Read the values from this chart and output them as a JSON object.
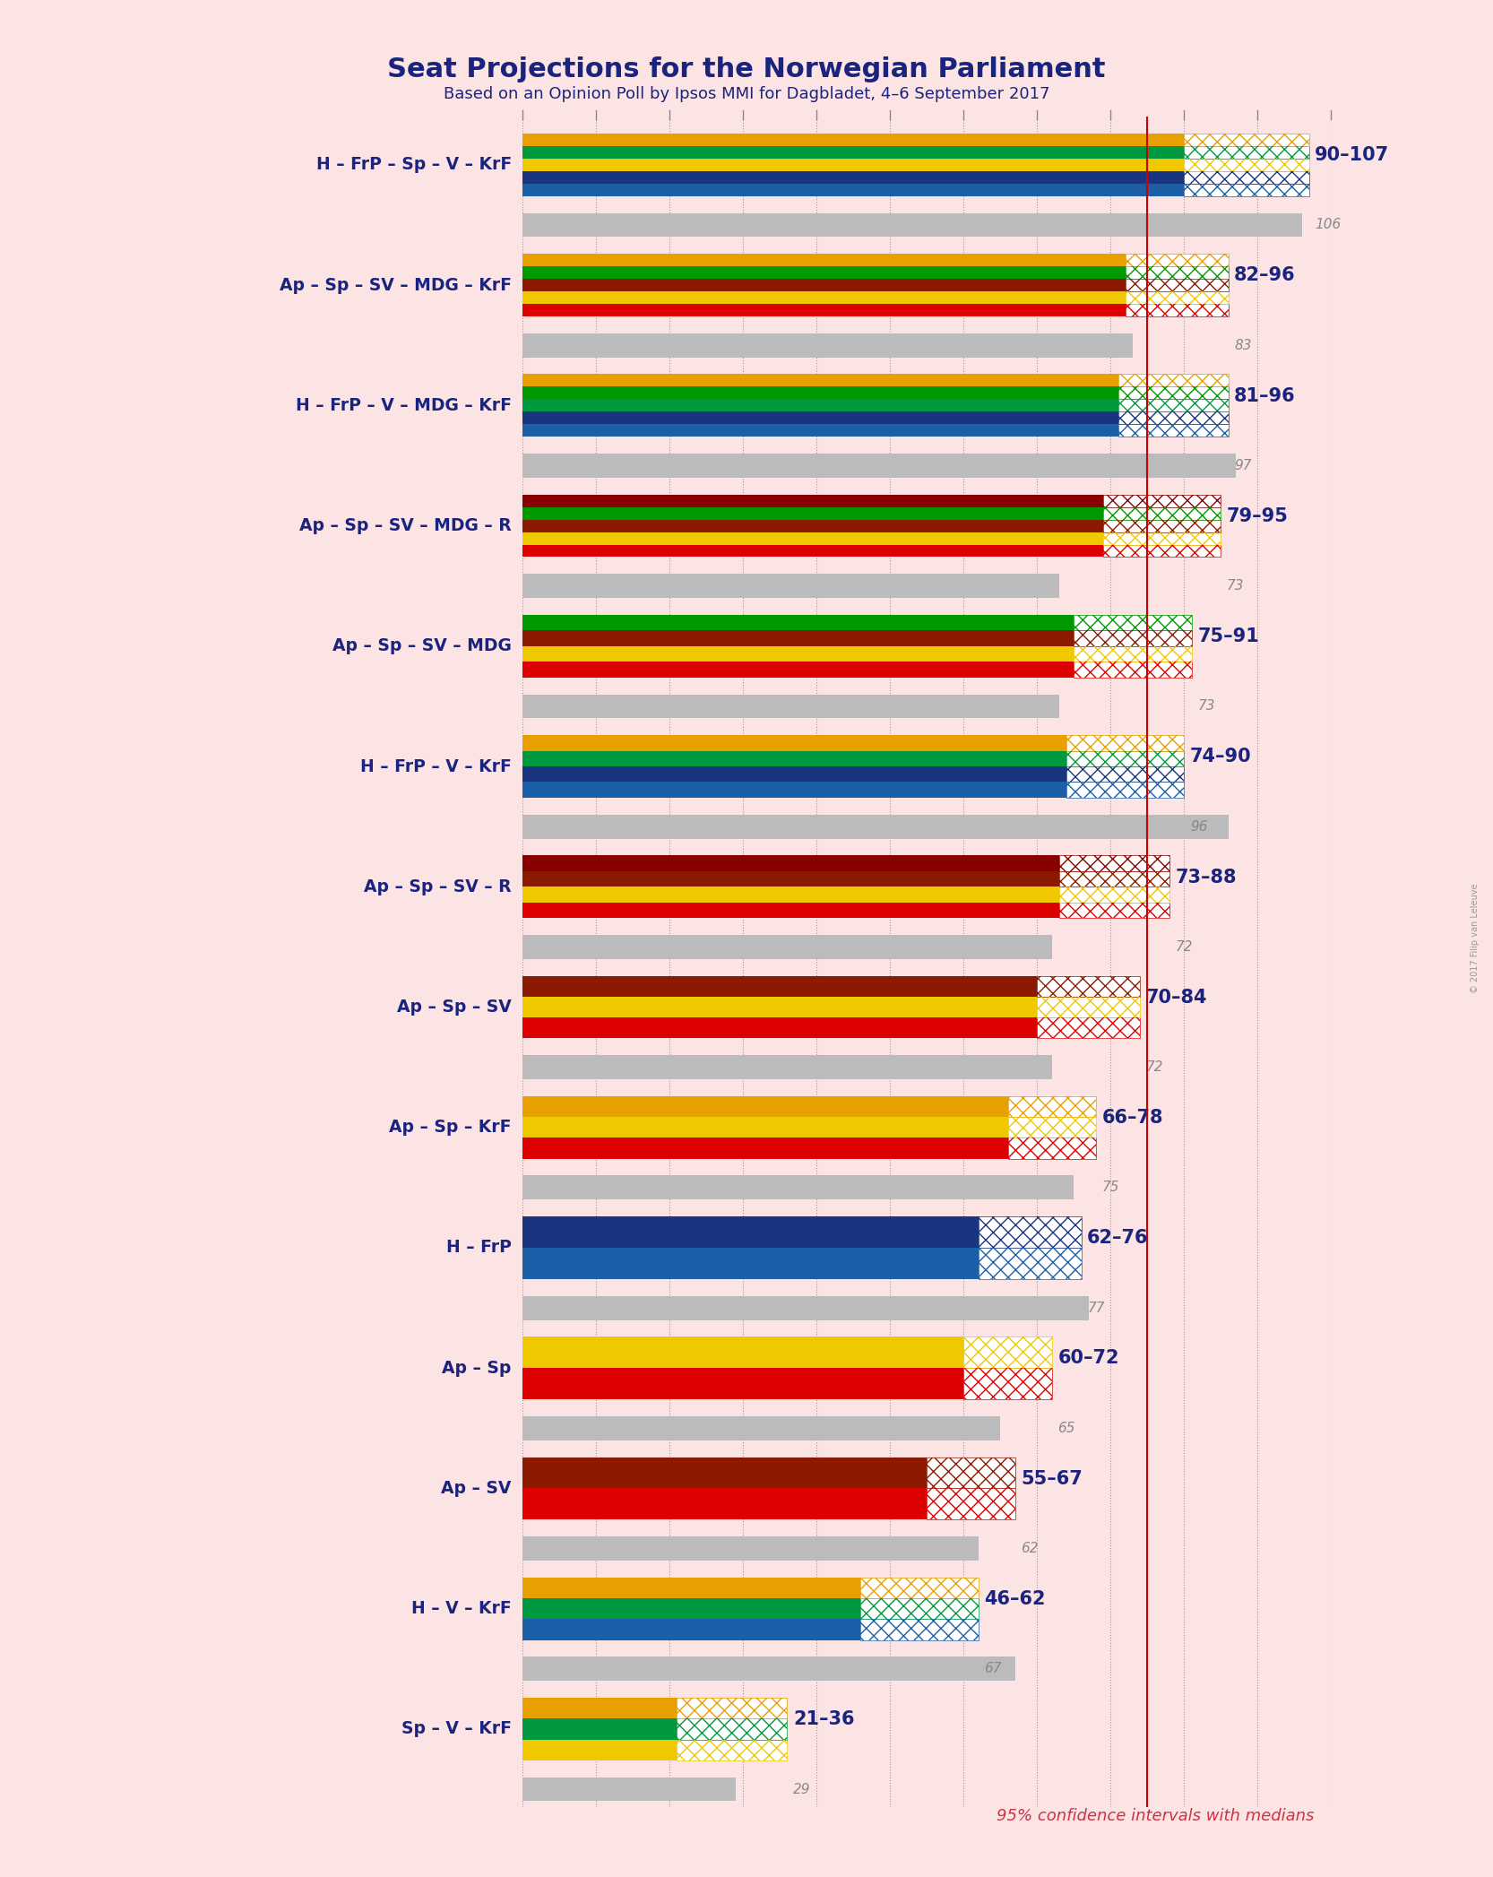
{
  "title": "Seat Projections for the Norwegian Parliament",
  "subtitle": "Based on an Opinion Poll by Ipsos MMI for Dagbladet, 4–6 September 2017",
  "note": "95% confidence intervals with medians",
  "background_color": "#fce4e4",
  "title_color": "#1a237e",
  "majority_line": 85,
  "x_max": 110,
  "coalitions": [
    {
      "name": "H – FrP – Sp – V – KrF",
      "ci_low": 90,
      "ci_high": 107,
      "median": 106,
      "parties": [
        "H",
        "FrP",
        "Sp",
        "V",
        "KrF"
      ]
    },
    {
      "name": "Ap – Sp – SV – MDG – KrF",
      "ci_low": 82,
      "ci_high": 96,
      "median": 83,
      "parties": [
        "Ap",
        "Sp",
        "SV",
        "MDG",
        "KrF"
      ]
    },
    {
      "name": "H – FrP – V – MDG – KrF",
      "ci_low": 81,
      "ci_high": 96,
      "median": 97,
      "parties": [
        "H",
        "FrP",
        "V",
        "MDG",
        "KrF"
      ]
    },
    {
      "name": "Ap – Sp – SV – MDG – R",
      "ci_low": 79,
      "ci_high": 95,
      "median": 73,
      "parties": [
        "Ap",
        "Sp",
        "SV",
        "MDG",
        "R"
      ]
    },
    {
      "name": "Ap – Sp – SV – MDG",
      "ci_low": 75,
      "ci_high": 91,
      "median": 73,
      "parties": [
        "Ap",
        "Sp",
        "SV",
        "MDG"
      ]
    },
    {
      "name": "H – FrP – V – KrF",
      "ci_low": 74,
      "ci_high": 90,
      "median": 96,
      "parties": [
        "H",
        "FrP",
        "V",
        "KrF"
      ]
    },
    {
      "name": "Ap – Sp – SV – R",
      "ci_low": 73,
      "ci_high": 88,
      "median": 72,
      "parties": [
        "Ap",
        "Sp",
        "SV",
        "R"
      ]
    },
    {
      "name": "Ap – Sp – SV",
      "ci_low": 70,
      "ci_high": 84,
      "median": 72,
      "parties": [
        "Ap",
        "Sp",
        "SV"
      ]
    },
    {
      "name": "Ap – Sp – KrF",
      "ci_low": 66,
      "ci_high": 78,
      "median": 75,
      "parties": [
        "Ap",
        "Sp",
        "KrF"
      ]
    },
    {
      "name": "H – FrP",
      "ci_low": 62,
      "ci_high": 76,
      "median": 77,
      "parties": [
        "H",
        "FrP"
      ]
    },
    {
      "name": "Ap – Sp",
      "ci_low": 60,
      "ci_high": 72,
      "median": 65,
      "parties": [
        "Ap",
        "Sp"
      ]
    },
    {
      "name": "Ap – SV",
      "ci_low": 55,
      "ci_high": 67,
      "median": 62,
      "parties": [
        "Ap",
        "SV"
      ]
    },
    {
      "name": "H – V – KrF",
      "ci_low": 46,
      "ci_high": 62,
      "median": 67,
      "parties": [
        "H",
        "V",
        "KrF"
      ]
    },
    {
      "name": "Sp – V – KrF",
      "ci_low": 21,
      "ci_high": 36,
      "median": 29,
      "parties": [
        "Sp",
        "V",
        "KrF"
      ]
    }
  ],
  "party_colors": {
    "H": "#1a5fa8",
    "FrP": "#1a3580",
    "Sp": "#f0c800",
    "V": "#009940",
    "KrF": "#e8a000",
    "Ap": "#dd0000",
    "SV": "#8b1a00",
    "MDG": "#009900",
    "R": "#880000"
  },
  "party_hatch_colors": {
    "H": "#1a5fa8",
    "FrP": "#1a3580",
    "Sp": "#f0c800",
    "V": "#009940",
    "KrF": "#e8a000",
    "Ap": "#dd0000",
    "SV": "#8b1a00",
    "MDG": "#009900",
    "R": "#880000"
  }
}
